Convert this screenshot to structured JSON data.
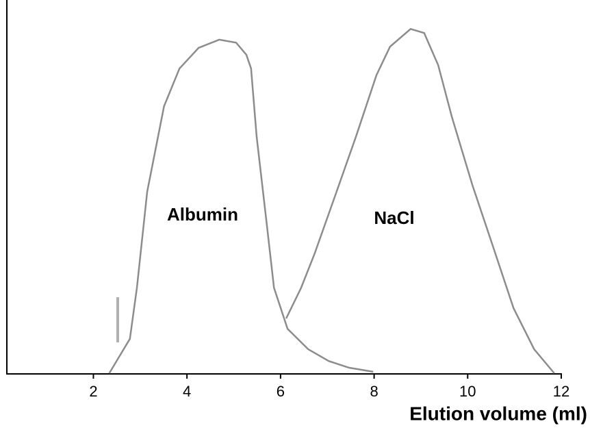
{
  "chart_data": {
    "type": "line",
    "x_label": "Elution volume (ml)",
    "xlim": [
      0.15,
      12
    ],
    "xticks": [
      2,
      4,
      6,
      8,
      10,
      12
    ],
    "ylim": [
      0,
      100
    ],
    "series": [
      {
        "name": "Albumin",
        "color": "#8c8c8c",
        "x": [
          2.34,
          2.78,
          2.93,
          3.15,
          3.51,
          3.84,
          4.25,
          4.69,
          5.05,
          5.27,
          5.37,
          5.49,
          5.71,
          5.86,
          6.15,
          6.59,
          7.03,
          7.46,
          7.98
        ],
        "values": [
          0,
          9.3,
          23.1,
          49.1,
          72.2,
          82.4,
          88,
          90.2,
          89.4,
          86.1,
          82.4,
          63.9,
          39.8,
          23.1,
          12,
          6.5,
          3.3,
          1.5,
          0.4
        ]
      },
      {
        "name": "NaCl",
        "color": "#8c8c8c",
        "x": [
          6.12,
          6.44,
          6.73,
          7.17,
          7.61,
          8.05,
          8.34,
          8.78,
          9.07,
          9.37,
          9.66,
          10.1,
          10.54,
          10.98,
          11.42,
          11.85
        ],
        "values": [
          14.8,
          23.1,
          32.4,
          48.1,
          63.9,
          80.6,
          88.3,
          93.1,
          92.0,
          83.3,
          69.4,
          50.9,
          34.3,
          17.6,
          6.5,
          0
        ]
      }
    ]
  }
}
